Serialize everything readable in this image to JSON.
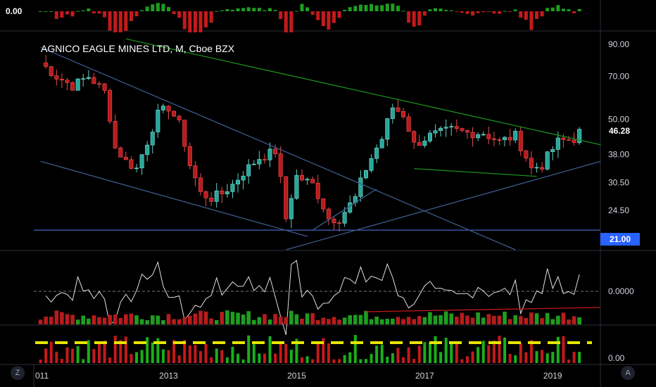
{
  "title": "AGNICO EAGLE MINES LTD, M, Cboe BZX",
  "top_indicator_value": "0.00",
  "last_price_label": "46.28",
  "level_label": "21.00",
  "osc_zero_label": "0.0000",
  "vol_label": "0.00",
  "left_buttons": {
    "z": "Z"
  },
  "right_buttons": {
    "a": "A"
  },
  "colors": {
    "up": "#26a69a",
    "down": "#b71c1c",
    "green_line": "#1b8f1b",
    "blue_line": "#3d5a8a",
    "level": "#4a6fd6",
    "dash": "#e6e600"
  },
  "chart_data": {
    "type": "candlestick",
    "title": "AGNICO EAGLE MINES LTD, M, Cboe BZX",
    "x_ticks": [
      "011",
      "2013",
      "2015",
      "2017",
      "2019"
    ],
    "y_ticks": [
      "90.00",
      "70.00",
      "50.00",
      "38.00",
      "30.50",
      "24.50"
    ],
    "y_scale": "log",
    "ylim": [
      18,
      100
    ],
    "last_price": 46.28,
    "level": 21.0,
    "anchors": [
      [
        "2011-01",
        78
      ],
      [
        "2011-04",
        70
      ],
      [
        "2011-07",
        65
      ],
      [
        "2011-10",
        70
      ],
      [
        "2012-01",
        62
      ],
      [
        "2012-03",
        40
      ],
      [
        "2012-05",
        36
      ],
      [
        "2012-07",
        34
      ],
      [
        "2012-09",
        42
      ],
      [
        "2012-11",
        52
      ],
      [
        "2013-01",
        55
      ],
      [
        "2013-03",
        48
      ],
      [
        "2013-05",
        35
      ],
      [
        "2013-07",
        28
      ],
      [
        "2013-09",
        27
      ],
      [
        "2013-11",
        28
      ],
      [
        "2014-01",
        30
      ],
      [
        "2014-03",
        33
      ],
      [
        "2014-06",
        37
      ],
      [
        "2014-09",
        39
      ],
      [
        "2014-11",
        23
      ],
      [
        "2015-01",
        32
      ],
      [
        "2015-04",
        30
      ],
      [
        "2015-07",
        23
      ],
      [
        "2015-09",
        23
      ],
      [
        "2015-12",
        27
      ],
      [
        "2016-02",
        34
      ],
      [
        "2016-05",
        43
      ],
      [
        "2016-07",
        55
      ],
      [
        "2016-09",
        52
      ],
      [
        "2016-11",
        41
      ],
      [
        "2017-02",
        44
      ],
      [
        "2017-06",
        46
      ],
      [
        "2017-09",
        45
      ],
      [
        "2017-12",
        45
      ],
      [
        "2018-03",
        42
      ],
      [
        "2018-06",
        44
      ],
      [
        "2018-09",
        34
      ],
      [
        "2018-11",
        35
      ],
      [
        "2019-02",
        42
      ],
      [
        "2019-05",
        43
      ],
      [
        "2019-06",
        46
      ]
    ],
    "trendlines": [
      {
        "color": "green",
        "from": [
          "2012-05",
          94
        ],
        "to": [
          "2019-10",
          41
        ]
      },
      {
        "color": "green",
        "from": [
          "2016-11",
          34
        ],
        "to": [
          "2018-10",
          32
        ]
      },
      {
        "color": "blue",
        "from": [
          "2011-01",
          88
        ],
        "to": [
          "2018-06",
          18
        ]
      },
      {
        "color": "blue",
        "from": [
          "2011-01",
          36
        ],
        "to": [
          "2015-03",
          20
        ]
      },
      {
        "color": "blue",
        "from": [
          "2014-11",
          18
        ],
        "to": [
          "2019-10",
          36
        ]
      },
      {
        "color": "blue",
        "from": [
          "2015-04",
          21
        ],
        "to": [
          "2016-04",
          29
        ]
      }
    ]
  }
}
